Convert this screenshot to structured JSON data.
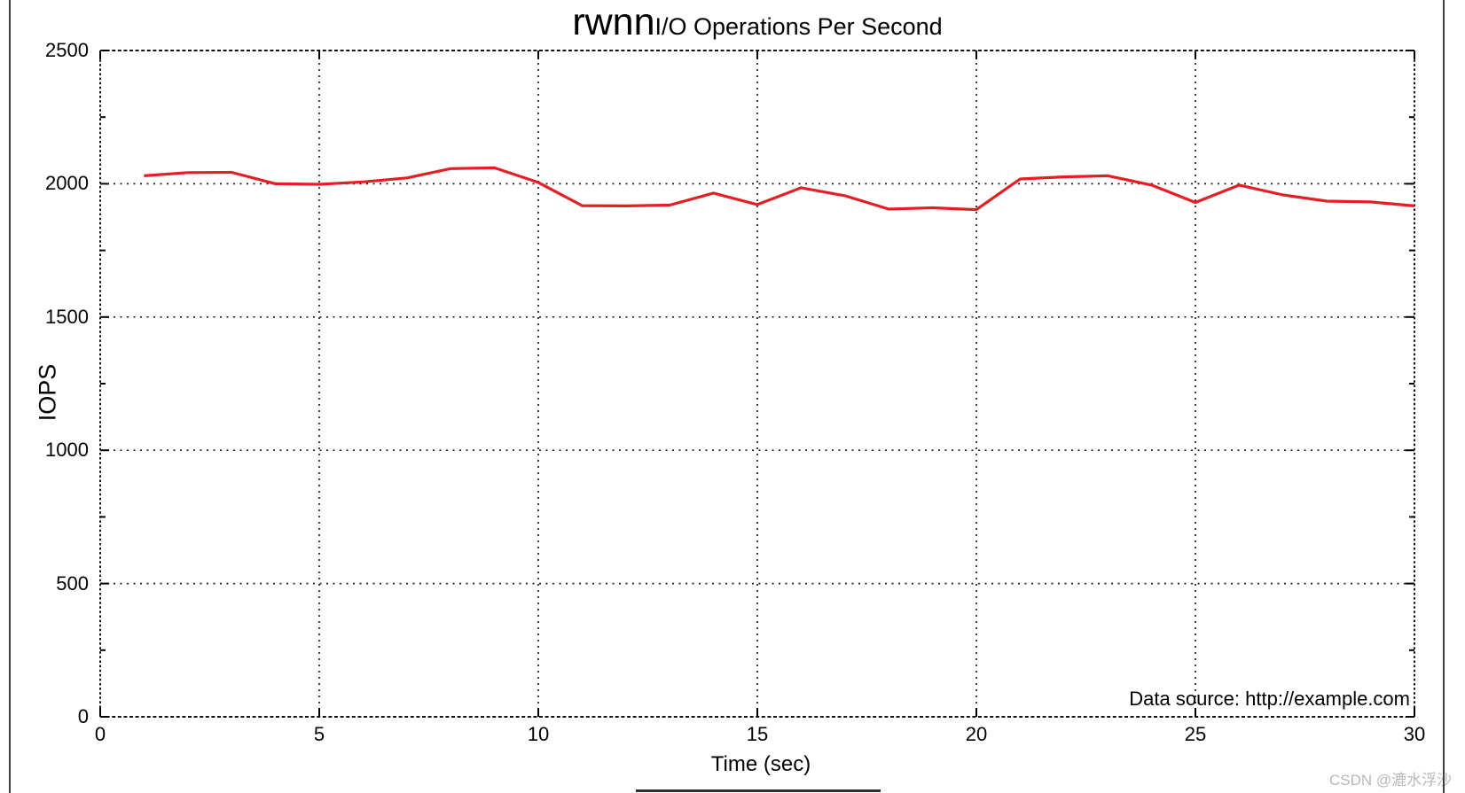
{
  "watermark": {
    "text": "CSDN @漉水浮沙"
  },
  "chart_data": {
    "type": "line",
    "title_main": "rwnn",
    "title_sub": "I/O Operations Per Second",
    "xlabel": "Time (sec)",
    "ylabel": "IOPS",
    "annotation": "Data source: http://example.com",
    "x_range": [
      0,
      30
    ],
    "y_range": [
      0,
      2500
    ],
    "x_ticks": [
      0,
      5,
      10,
      15,
      20,
      25,
      30
    ],
    "y_ticks": [
      0,
      500,
      1000,
      1500,
      2000,
      2500
    ],
    "y_minor_ticks": [
      250,
      750,
      1250,
      1750,
      2250
    ],
    "grid": true,
    "legend_position": "bottom-center-cutoff",
    "line_color": "#e41e25",
    "series": [
      {
        "name": "rwnn",
        "x": [
          1,
          2,
          3,
          4,
          5,
          6,
          7,
          8,
          9,
          10,
          11,
          12,
          13,
          14,
          15,
          16,
          17,
          18,
          19,
          20,
          21,
          22,
          23,
          24,
          25,
          26,
          27,
          28,
          29,
          30
        ],
        "values": [
          2030,
          2042,
          2043,
          2000,
          1998,
          2007,
          2022,
          2057,
          2060,
          2005,
          1918,
          1917,
          1920,
          1965,
          1922,
          1985,
          1955,
          1905,
          1910,
          1903,
          2018,
          2026,
          2030,
          1995,
          1930,
          1995,
          1958,
          1935,
          1932,
          1917
        ]
      }
    ]
  }
}
